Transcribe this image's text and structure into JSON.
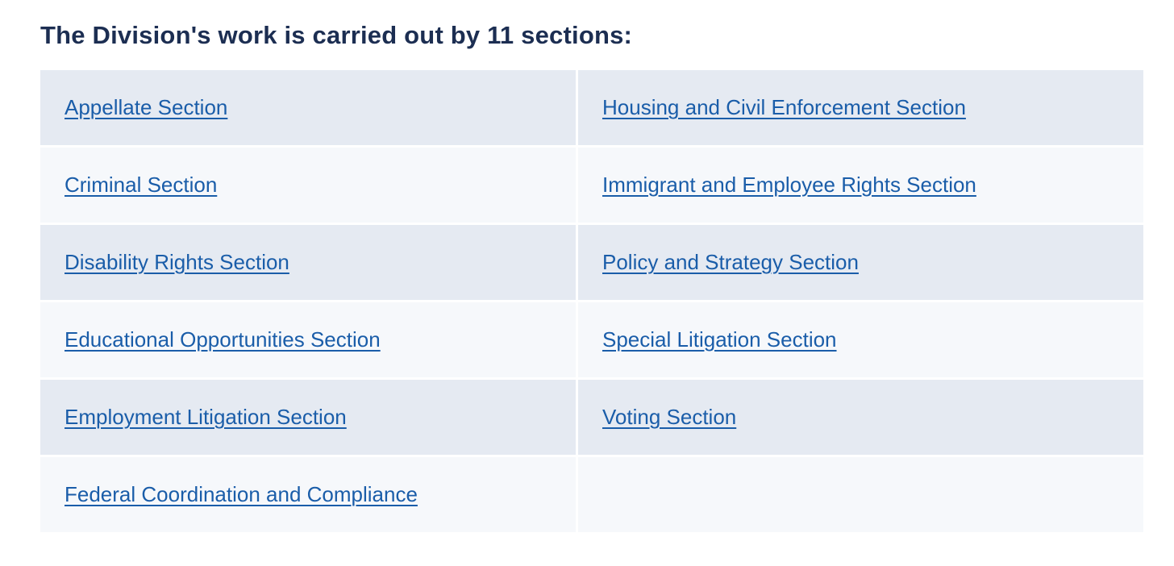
{
  "heading": "The Division's work is carried out by 11 sections:",
  "colors": {
    "heading_text": "#1c2e52",
    "link": "#1a5da9",
    "row_odd_bg": "#e5eaf2",
    "row_even_bg": "#f6f8fb",
    "cell_divider": "#ffffff",
    "page_bg": "#ffffff"
  },
  "table": {
    "rows": [
      {
        "left": "Appellate Section",
        "right": "Housing and Civil Enforcement Section"
      },
      {
        "left": "Criminal Section",
        "right": "Immigrant and Employee Rights Section"
      },
      {
        "left": "Disability Rights Section",
        "right": "Policy and Strategy Section"
      },
      {
        "left": "Educational Opportunities Section",
        "right": "Special Litigation Section"
      },
      {
        "left": "Employment Litigation Section",
        "right": "Voting Section"
      },
      {
        "left": "Federal Coordination and Compliance",
        "right": ""
      }
    ]
  }
}
